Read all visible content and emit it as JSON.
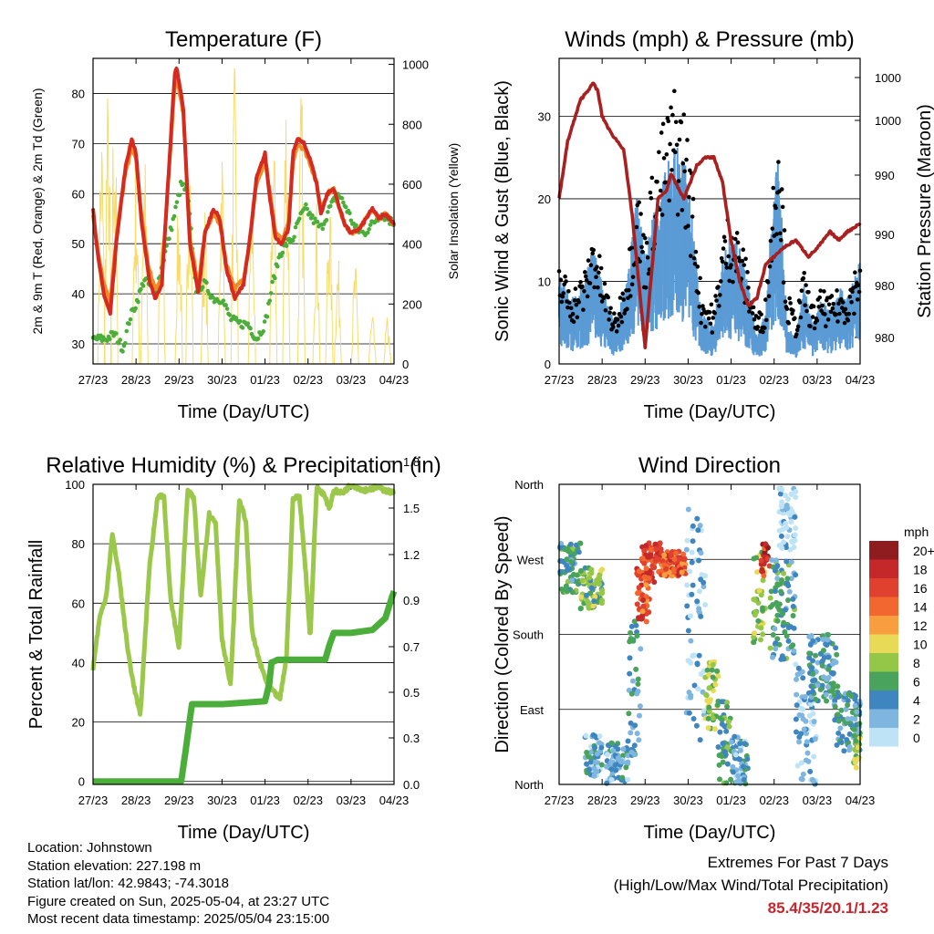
{
  "chart_data": [
    {
      "id": "temperature",
      "type": "line",
      "title": "Temperature (F)",
      "xlabel": "Time (Day/UTC)",
      "ylabel": "2m & 9m T (Red, Orange) & 2m Td (Green)",
      "ylabel_right": "Solar Insolation (Yellow)",
      "x_ticks": [
        "27/23",
        "28/23",
        "29/23",
        "30/23",
        "01/23",
        "02/23",
        "03/23",
        "04/23"
      ],
      "ylim": [
        26,
        87
      ],
      "yticks": [
        30,
        40,
        50,
        60,
        70,
        80
      ],
      "ylim_right": [
        0,
        1020
      ],
      "yticks_right": [
        0,
        200,
        400,
        600,
        800,
        1000
      ],
      "grid": "horizontal",
      "series": [
        {
          "name": "2m T",
          "color": "#d42a20",
          "axis": "left",
          "x": [
            0,
            0.12,
            0.25,
            0.4,
            0.55,
            0.75,
            0.9,
            1.0,
            1.12,
            1.3,
            1.45,
            1.6,
            1.8,
            1.9,
            1.95,
            2.1,
            2.25,
            2.45,
            2.6,
            2.8,
            2.95,
            3.1,
            3.3,
            3.5,
            3.65,
            3.8,
            4.0,
            4.1,
            4.25,
            4.4,
            4.55,
            4.65,
            4.75,
            4.9,
            5.05,
            5.2,
            5.3,
            5.45,
            5.6,
            5.7,
            5.85,
            6.0,
            6.2,
            6.35,
            6.5,
            6.65,
            6.8,
            7.0
          ],
          "y": [
            57,
            47,
            40,
            36,
            51,
            65,
            71,
            68,
            55,
            43,
            39,
            42,
            70,
            84,
            85,
            77,
            50,
            40,
            52,
            57,
            55,
            45,
            39,
            42,
            51,
            63,
            68,
            60,
            51,
            50,
            53,
            68,
            71,
            70,
            67,
            62,
            56,
            60,
            61,
            58,
            54,
            52,
            53,
            55,
            57,
            55,
            56,
            54
          ]
        },
        {
          "name": "9m T",
          "color": "#f08a25",
          "axis": "left",
          "x": [
            0,
            0.12,
            0.25,
            0.4,
            0.55,
            0.75,
            0.9,
            1.0,
            1.12,
            1.3,
            1.45,
            1.6,
            1.8,
            1.9,
            1.95,
            2.1,
            2.25,
            2.45,
            2.6,
            2.8,
            2.95,
            3.1,
            3.3,
            3.5,
            3.65,
            3.8,
            4.0,
            4.1,
            4.25,
            4.4,
            4.55,
            4.65,
            4.75,
            4.9,
            5.05,
            5.2,
            5.3,
            5.45,
            5.6,
            5.7,
            5.85,
            6.0,
            6.2,
            6.35,
            6.5,
            6.65,
            6.8,
            7.0
          ],
          "y": [
            56,
            48,
            42,
            38,
            52,
            64,
            69,
            67,
            56,
            45,
            41,
            43,
            69,
            82,
            83,
            76,
            51,
            42,
            52,
            56,
            54,
            46,
            41,
            43,
            51,
            62,
            66,
            61,
            52,
            51,
            54,
            66,
            70,
            69,
            66,
            62,
            57,
            60,
            61,
            58,
            54,
            52,
            53,
            55,
            57,
            55,
            56,
            54
          ]
        },
        {
          "name": "2m Td",
          "color": "#4cae3a",
          "axis": "left",
          "x": [
            0,
            0.3,
            0.5,
            0.7,
            0.85,
            1.0,
            1.2,
            1.45,
            1.7,
            1.9,
            2.05,
            2.2,
            2.4,
            2.6,
            2.8,
            3.0,
            3.2,
            3.4,
            3.6,
            3.8,
            4.0,
            4.2,
            4.35,
            4.5,
            4.65,
            4.8,
            4.95,
            5.1,
            5.3,
            5.5,
            5.7,
            5.9,
            6.1,
            6.3,
            6.5,
            6.7,
            7.0
          ],
          "y": [
            31,
            31,
            32,
            29,
            35,
            38,
            43,
            40,
            49,
            56,
            62,
            60,
            41,
            42,
            39,
            39,
            35,
            34,
            34,
            31,
            34,
            43,
            48,
            50,
            51,
            55,
            57,
            55,
            53,
            57,
            60,
            57,
            53,
            52,
            54,
            56,
            54
          ]
        },
        {
          "name": "Solar Insolation",
          "color": "#f7dc6b",
          "axis": "right",
          "peaks_x": [
            0.2,
            0.35,
            0.5,
            1.0,
            1.2,
            1.6,
            2.0,
            2.25,
            2.6,
            3.0,
            3.3,
            3.7,
            4.2,
            4.5,
            4.85,
            5.2,
            5.5,
            5.7,
            6.1,
            6.5,
            6.85
          ],
          "peaks_y": [
            850,
            940,
            980,
            700,
            760,
            560,
            600,
            850,
            540,
            800,
            1000,
            650,
            850,
            980,
            950,
            560,
            600,
            370,
            350,
            170,
            160
          ]
        }
      ]
    },
    {
      "id": "winds",
      "type": "line",
      "title": "Winds (mph) & Pressure (mb)",
      "xlabel": "Time (Day/UTC)",
      "ylabel": "Sonic Wind & Gust (Blue, Black)",
      "ylabel_right": "Station Pressure (Maroon)",
      "x_ticks": [
        "27/23",
        "28/23",
        "29/23",
        "30/23",
        "01/23",
        "02/23",
        "03/23",
        "04/23"
      ],
      "ylim": [
        0,
        37
      ],
      "yticks": [
        0,
        10,
        20,
        30
      ],
      "right_tick_labels": [
        "1000",
        "1000",
        "990",
        "990",
        "980",
        "980"
      ],
      "grid": "horizontal",
      "series": [
        {
          "name": "Sonic Wind",
          "color": "#5b9bd5",
          "x": [
            0,
            0.3,
            0.6,
            0.8,
            1.0,
            1.3,
            1.6,
            1.8,
            2.0,
            2.2,
            2.5,
            2.7,
            2.9,
            3.1,
            3.3,
            3.6,
            3.8,
            4.0,
            4.2,
            4.4,
            4.6,
            4.8,
            5.0,
            5.1,
            5.3,
            5.5,
            5.7,
            5.9,
            6.1,
            6.3,
            6.5,
            6.7,
            7.0
          ],
          "y": [
            7,
            5,
            6,
            10,
            6,
            3,
            7,
            13,
            8,
            12,
            15,
            17,
            16,
            11,
            4,
            3,
            8,
            10,
            9,
            6,
            2,
            4,
            14,
            18,
            3,
            2,
            6,
            3,
            5,
            4,
            6,
            5,
            8
          ]
        },
        {
          "name": "Gust",
          "color": "#000000",
          "x": [
            0,
            0.3,
            0.6,
            0.8,
            1.0,
            1.3,
            1.6,
            1.8,
            2.0,
            2.2,
            2.5,
            2.7,
            2.9,
            3.1,
            3.3,
            3.6,
            3.8,
            4.0,
            4.2,
            4.4,
            4.6,
            4.8,
            5.0,
            5.1,
            5.3,
            5.5,
            5.7,
            5.9,
            6.1,
            6.3,
            6.5,
            6.7,
            7.0
          ],
          "y": [
            11,
            8,
            10,
            15,
            10,
            5,
            11,
            20,
            14,
            22,
            27,
            30,
            28,
            20,
            8,
            6,
            14,
            17,
            14,
            10,
            5,
            7,
            22,
            29,
            8,
            5,
            10,
            6,
            8,
            7,
            8,
            8,
            12
          ]
        },
        {
          "name": "Station Pressure",
          "color": "#a8201f",
          "x": [
            0,
            0.2,
            0.5,
            0.8,
            0.9,
            1.0,
            1.2,
            1.5,
            1.7,
            1.85,
            2.0,
            2.1,
            2.3,
            2.5,
            2.6,
            2.9,
            3.2,
            3.4,
            3.6,
            3.8,
            4.0,
            4.2,
            4.4,
            4.6,
            4.8,
            5.0,
            5.2,
            5.5,
            5.8,
            6.0,
            6.3,
            6.5,
            6.7,
            7.0
          ],
          "y": [
            20,
            27,
            32,
            34,
            33,
            30,
            28,
            26,
            18,
            10,
            2,
            8,
            20,
            21,
            23,
            20,
            24,
            25,
            25,
            22,
            15,
            10,
            7,
            8,
            12,
            13,
            14,
            15,
            13,
            14,
            16,
            15,
            16,
            17
          ]
        }
      ]
    },
    {
      "id": "humidity",
      "type": "line",
      "title": "Relative Humidity (%) & Precipitation (in)",
      "xlabel": "Time (Day/UTC)",
      "ylabel": "Percent & Total Rainfall",
      "x_ticks": [
        "27/23",
        "28/23",
        "29/23",
        "30/23",
        "01/23",
        "02/23",
        "03/23",
        "04/23"
      ],
      "ylim": [
        -1,
        100
      ],
      "yticks": [
        0,
        20,
        40,
        60,
        80,
        100
      ],
      "right_tick_labels": [
        "0.0",
        "0.3",
        "0.5",
        "0.7",
        "0.9",
        "1.2",
        "1.5",
        "1.8"
      ],
      "grid": "horizontal",
      "series": [
        {
          "name": "Relative Humidity",
          "color": "#9bc84a",
          "x": [
            0,
            0.15,
            0.3,
            0.45,
            0.6,
            0.8,
            0.95,
            1.1,
            1.3,
            1.5,
            1.65,
            1.8,
            2.0,
            2.2,
            2.35,
            2.5,
            2.7,
            2.85,
            3.0,
            3.2,
            3.4,
            3.55,
            3.7,
            3.9,
            4.05,
            4.2,
            4.35,
            4.5,
            4.65,
            4.8,
            4.95,
            5.05,
            5.2,
            5.35,
            5.5,
            5.6,
            5.8,
            6.0,
            6.3,
            6.6,
            7.0
          ],
          "y": [
            38,
            55,
            62,
            83,
            70,
            45,
            32,
            22,
            70,
            96,
            96,
            62,
            45,
            98,
            95,
            62,
            90,
            87,
            48,
            32,
            95,
            88,
            50,
            39,
            33,
            30,
            28,
            42,
            95,
            96,
            70,
            48,
            99,
            97,
            92,
            98,
            97,
            100,
            98,
            99,
            97
          ]
        },
        {
          "name": "Total Rainfall",
          "color": "#4cae3a",
          "x": [
            0,
            1.5,
            2.05,
            2.15,
            2.3,
            3.0,
            4.0,
            4.1,
            4.15,
            4.3,
            5.0,
            5.4,
            5.5,
            5.6,
            6.0,
            6.5,
            6.8,
            6.95,
            7.0
          ],
          "y": [
            0,
            0,
            0,
            10,
            26,
            26,
            27,
            33,
            40,
            41,
            41,
            41,
            46,
            50,
            50,
            51,
            55,
            62,
            64
          ]
        }
      ],
      "extremes_total_precip": 1.23
    },
    {
      "id": "wind_direction",
      "type": "scatter",
      "title": "Wind Direction",
      "xlabel": "Time (Day/UTC)",
      "ylabel": "Direction (Colored By Speed)",
      "x_ticks": [
        "27/23",
        "28/23",
        "29/23",
        "30/23",
        "01/23",
        "02/23",
        "03/23",
        "04/23"
      ],
      "y_ticks": [
        "North",
        "East",
        "South",
        "West",
        "North"
      ],
      "ylim": [
        0,
        360
      ],
      "grid": "horizontal",
      "colorbar": {
        "unit": "mph",
        "labels": [
          "20+",
          "18",
          "16",
          "14",
          "12",
          "10",
          "8",
          "6",
          "4",
          "2",
          "0"
        ],
        "colors": [
          "#8f1d1f",
          "#c4282a",
          "#e0402e",
          "#f2672f",
          "#f89e3e",
          "#e8d956",
          "#94c648",
          "#4aa35a",
          "#3f86c0",
          "#7fb6e0",
          "#bfe3f6"
        ]
      },
      "clusters": [
        {
          "x0": 0.0,
          "x1": 0.5,
          "d0": 230,
          "d1": 290,
          "speed": 5
        },
        {
          "x0": 0.5,
          "x1": 1.0,
          "d0": 210,
          "d1": 260,
          "speed": 7
        },
        {
          "x0": 0.6,
          "x1": 1.0,
          "d0": 10,
          "d1": 60,
          "speed": 3
        },
        {
          "x0": 1.1,
          "x1": 1.6,
          "d0": 0,
          "d1": 50,
          "speed": 3
        },
        {
          "x0": 1.6,
          "x1": 1.9,
          "d0": 30,
          "d1": 200,
          "speed": 4
        },
        {
          "x0": 1.8,
          "x1": 2.1,
          "d0": 190,
          "d1": 260,
          "speed": 15
        },
        {
          "x0": 1.9,
          "x1": 2.4,
          "d0": 240,
          "d1": 290,
          "speed": 16
        },
        {
          "x0": 2.4,
          "x1": 2.95,
          "d0": 250,
          "d1": 280,
          "speed": 15
        },
        {
          "x0": 2.95,
          "x1": 3.4,
          "d0": 50,
          "d1": 330,
          "speed": 2
        },
        {
          "x0": 3.4,
          "x1": 3.7,
          "d0": 60,
          "d1": 150,
          "speed": 8
        },
        {
          "x0": 3.7,
          "x1": 4.0,
          "d0": 0,
          "d1": 100,
          "speed": 6
        },
        {
          "x0": 4.0,
          "x1": 4.4,
          "d0": 0,
          "d1": 60,
          "speed": 3
        },
        {
          "x0": 4.5,
          "x1": 4.8,
          "d0": 170,
          "d1": 280,
          "speed": 8
        },
        {
          "x0": 4.7,
          "x1": 4.9,
          "d0": 250,
          "d1": 290,
          "speed": 17
        },
        {
          "x0": 4.9,
          "x1": 5.5,
          "d0": 150,
          "d1": 270,
          "speed": 5
        },
        {
          "x0": 5.1,
          "x1": 5.5,
          "d0": 280,
          "d1": 355,
          "speed": 1
        },
        {
          "x0": 5.5,
          "x1": 6.0,
          "d0": 0,
          "d1": 150,
          "speed": 2
        },
        {
          "x0": 5.8,
          "x1": 6.5,
          "d0": 100,
          "d1": 180,
          "speed": 4
        },
        {
          "x0": 6.4,
          "x1": 7.0,
          "d0": 40,
          "d1": 110,
          "speed": 4
        },
        {
          "x0": 6.85,
          "x1": 7.0,
          "d0": 20,
          "d1": 60,
          "speed": 8
        }
      ]
    }
  ],
  "info": {
    "location": "Location: Johnstown",
    "elevation": "Station elevation: 227.198 m",
    "latlon": "Station lat/lon: 42.9843; -74.3018",
    "created": "Figure created on Sun, 2025-05-04, at 23:27 UTC",
    "recent": "Most recent data timestamp: 2025/05/04 23:15:00"
  },
  "extremes": {
    "title": "Extremes For Past 7 Days",
    "subtitle": "(High/Low/Max Wind/Total Precipitation)",
    "value": "85.4/35/20.1/1.23"
  }
}
